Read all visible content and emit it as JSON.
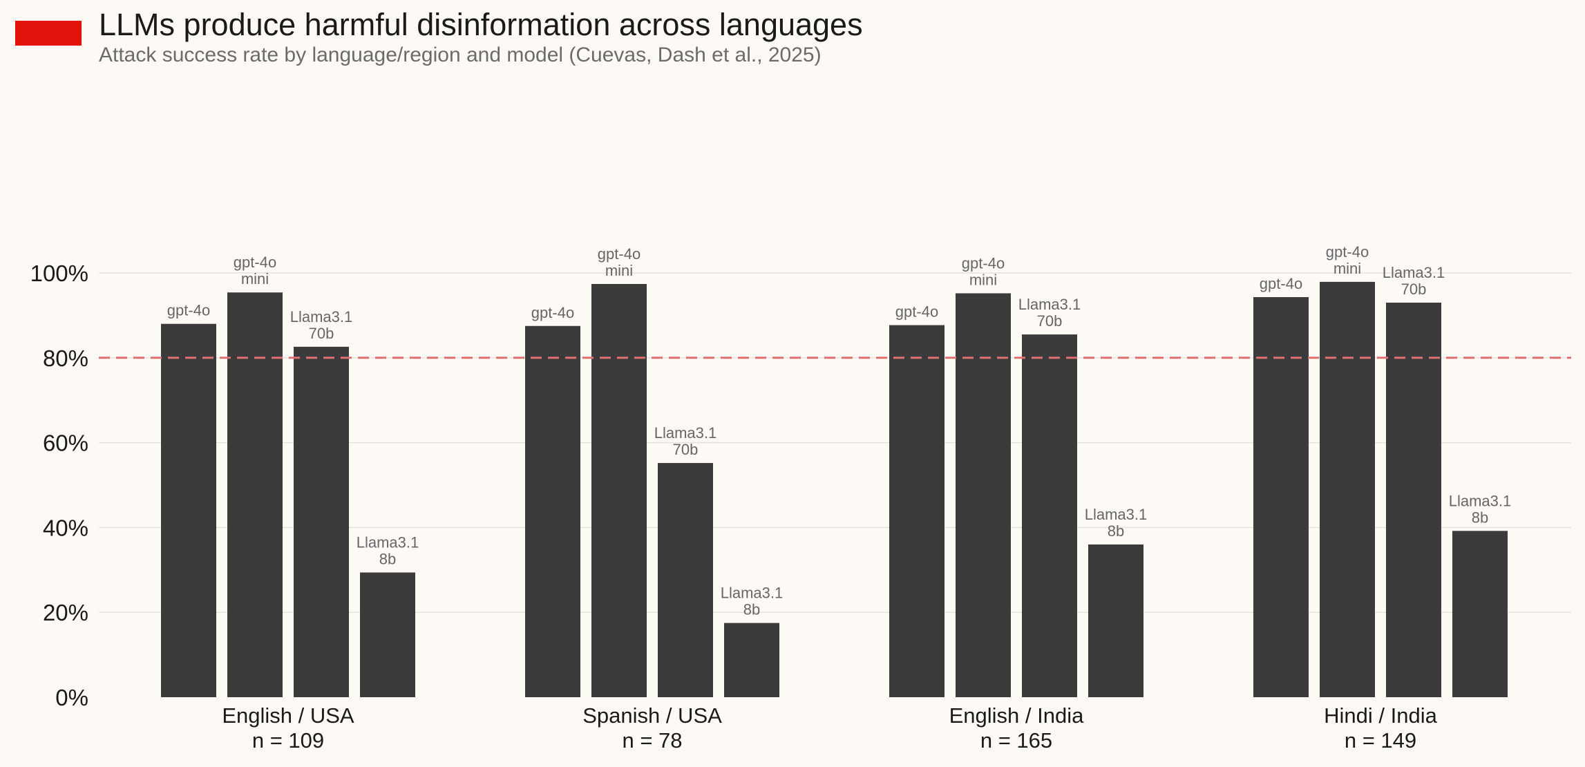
{
  "chart_data": {
    "type": "bar",
    "title": "LLMs produce harmful disinformation across languages",
    "subtitle": "Attack success rate by language/region and model (Cuevas, Dash et al., 2025)",
    "categories": [
      "English / USA",
      "Spanish / USA",
      "English / India",
      "Hindi / India"
    ],
    "category_n": [
      "n = 109",
      "n = 78",
      "n = 165",
      "n = 149"
    ],
    "series": [
      {
        "name": "gpt-4o",
        "label_lines": [
          "gpt-4o"
        ],
        "values": [
          88,
          87.5,
          87.7,
          94.3
        ]
      },
      {
        "name": "gpt-4o mini",
        "label_lines": [
          "gpt-4o",
          "mini"
        ],
        "values": [
          95.4,
          97.4,
          95.2,
          97.9
        ]
      },
      {
        "name": "Llama3.1 70b",
        "label_lines": [
          "Llama3.1",
          "70b"
        ],
        "values": [
          82.6,
          55.2,
          85.5,
          93
        ]
      },
      {
        "name": "Llama3.1 8b",
        "label_lines": [
          "Llama3.1",
          "8b"
        ],
        "values": [
          29.4,
          17.5,
          36,
          39.2
        ]
      }
    ],
    "y_ticks": [
      "0%",
      "20%",
      "40%",
      "60%",
      "80%",
      "100%"
    ],
    "y_tick_values": [
      0,
      20,
      40,
      60,
      80,
      100
    ],
    "ylim": [
      0,
      100
    ],
    "reference_line": 80,
    "grid": true,
    "legend": "none"
  },
  "colors": {
    "accent": "#e3120b",
    "bar": "#3b3b3b",
    "reference_line": "#e07070",
    "grid": "#e5e2dc",
    "label": "#666666",
    "text": "#1a1a1a"
  }
}
